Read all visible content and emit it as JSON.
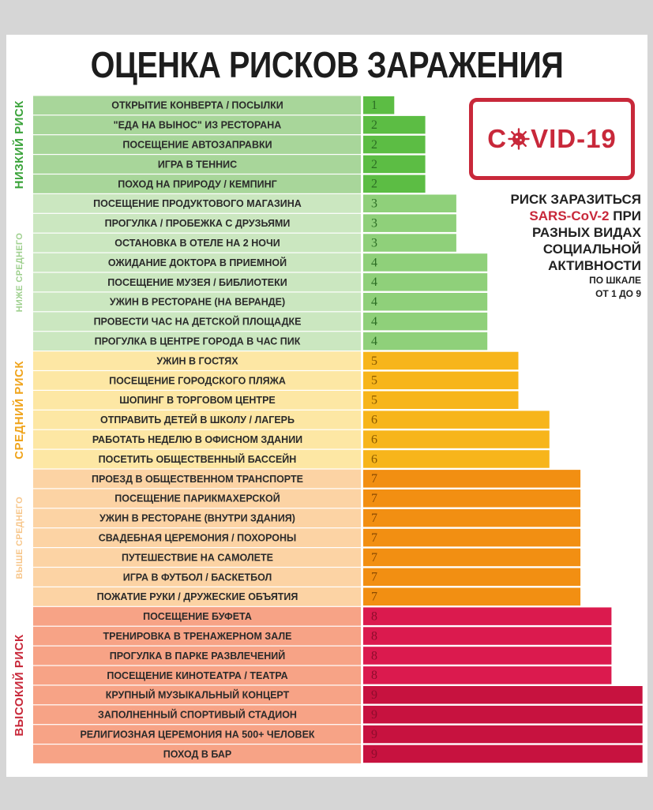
{
  "title": "ОЦЕНКА РИСКОВ ЗАРАЖЕНИЯ",
  "badge": {
    "before": "C",
    "after": "VID-19",
    "icon": "virus-icon"
  },
  "side_note": {
    "line1": "РИСК ЗАРАЗИТЬСЯ",
    "line2_red": "SARS-CoV-2",
    "line2_rest": " ПРИ",
    "line3": "РАЗНЫХ ВИДАХ",
    "line4": "СОЦИАЛЬНОЙ",
    "line5": "АКТИВНОСТИ",
    "scale1": "ПО ШКАЛЕ",
    "scale2": "ОТ 1 ДО 9"
  },
  "colors": {
    "green_bar": "#5cbd44",
    "light_green_bar": "#8fd07a",
    "yellow_bar": "#f7b51b",
    "orange_bar": "#f28f12",
    "red_bar": "#db1a4e",
    "dark_red_bar": "#c7123f",
    "green_text": "#3aa33a",
    "accent_red": "#c8283a"
  },
  "chart_data": {
    "type": "bar",
    "orientation": "horizontal",
    "title": "ОЦЕНКА РИСКОВ ЗАРАЖЕНИЯ",
    "xlim": [
      0,
      9
    ],
    "grid": false,
    "bands": [
      {
        "label": "НИЗКИЙ РИСК",
        "from": 0,
        "to": 4,
        "label_color": "#3aa33a",
        "label_style": "bold"
      },
      {
        "label": "НИЖЕ СРЕДНЕГО",
        "from": 5,
        "to": 12,
        "label_color": "#9fd08f",
        "label_style": "light"
      },
      {
        "label": "СРЕДНИЙ РИСК",
        "from": 13,
        "to": 18,
        "label_color": "#f0a41c",
        "label_style": "bold"
      },
      {
        "label": "ВЫШЕ СРЕДНЕГО",
        "from": 19,
        "to": 25,
        "label_color": "#f7c68a",
        "label_style": "light"
      },
      {
        "label": "ВЫСОКИЙ РИСК",
        "from": 26,
        "to": 33,
        "label_color": "#c8283a",
        "label_style": "bold"
      }
    ],
    "categories": [
      "ОТКРЫТИЕ КОНВЕРТА / ПОСЫЛКИ",
      "\"ЕДА НА ВЫНОС\" ИЗ РЕСТОРАНА",
      "ПОСЕЩЕНИЕ АВТОЗАПРАВКИ",
      "ИГРА В ТЕННИС",
      "ПОХОД НА ПРИРОДУ / КЕМПИНГ",
      "ПОСЕЩЕНИЕ ПРОДУКТОВОГО МАГАЗИНА",
      "ПРОГУЛКА / ПРОБЕЖКА С ДРУЗЬЯМИ",
      "ОСТАНОВКА В ОТЕЛЕ НА 2 НОЧИ",
      "ОЖИДАНИЕ ДОКТОРА В ПРИЕМНОЙ",
      "ПОСЕЩЕНИЕ МУЗЕЯ / БИБЛИОТЕКИ",
      "УЖИН В РЕСТОРАНЕ (НА ВЕРАНДЕ)",
      "ПРОВЕСТИ ЧАС НА ДЕТСКОЙ ПЛОЩАДКЕ",
      "ПРОГУЛКА В ЦЕНТРЕ ГОРОДА В ЧАС ПИК",
      "УЖИН В ГОСТЯХ",
      "ПОСЕЩЕНИЕ ГОРОДСКОГО ПЛЯЖА",
      "ШОПИНГ В ТОРГОВОМ ЦЕНТРЕ",
      "ОТПРАВИТЬ ДЕТЕЙ В ШКОЛУ / ЛАГЕРЬ",
      "РАБОТАТЬ НЕДЕЛЮ В ОФИСНОМ ЗДАНИИ",
      "ПОСЕТИТЬ ОБЩЕСТВЕННЫЙ БАССЕЙН",
      "ПРОЕЗД В ОБЩЕСТВЕННОМ ТРАНСПОРТЕ",
      "ПОСЕЩЕНИЕ ПАРИКМАХЕРСКОЙ",
      "УЖИН В РЕСТОРАНЕ (ВНУТРИ ЗДАНИЯ)",
      "СВАДЕБНАЯ ЦЕРЕМОНИЯ / ПОХОРОНЫ",
      "ПУТЕШЕСТВИЕ НА САМОЛЕТЕ",
      "ИГРА В ФУТБОЛ / БАСКЕТБОЛ",
      "ПОЖАТИЕ РУКИ / ДРУЖЕСКИЕ ОБЪЯТИЯ",
      "ПОСЕЩЕНИЕ БУФЕТА",
      "ТРЕНИРОВКА В ТРЕНАЖЕРНОМ ЗАЛЕ",
      "ПРОГУЛКА В ПАРКЕ РАЗВЛЕЧЕНИЙ",
      "ПОСЕЩЕНИЕ КИНОТЕАТРА / ТЕАТРА",
      "КРУПНЫЙ МУЗЫКАЛЬНЫЙ КОНЦЕРТ",
      "ЗАПОЛНЕННЫЙ СПОРТИВЫЙ СТАДИОН",
      "РЕЛИГИОЗНАЯ ЦЕРЕМОНИЯ НА 500+ ЧЕЛОВЕК",
      "ПОХОД В БАР"
    ],
    "values": [
      1,
      2,
      2,
      2,
      2,
      3,
      3,
      3,
      4,
      4,
      4,
      4,
      4,
      5,
      5,
      5,
      6,
      6,
      6,
      7,
      7,
      7,
      7,
      7,
      7,
      7,
      8,
      8,
      8,
      8,
      9,
      9,
      9,
      9
    ]
  }
}
